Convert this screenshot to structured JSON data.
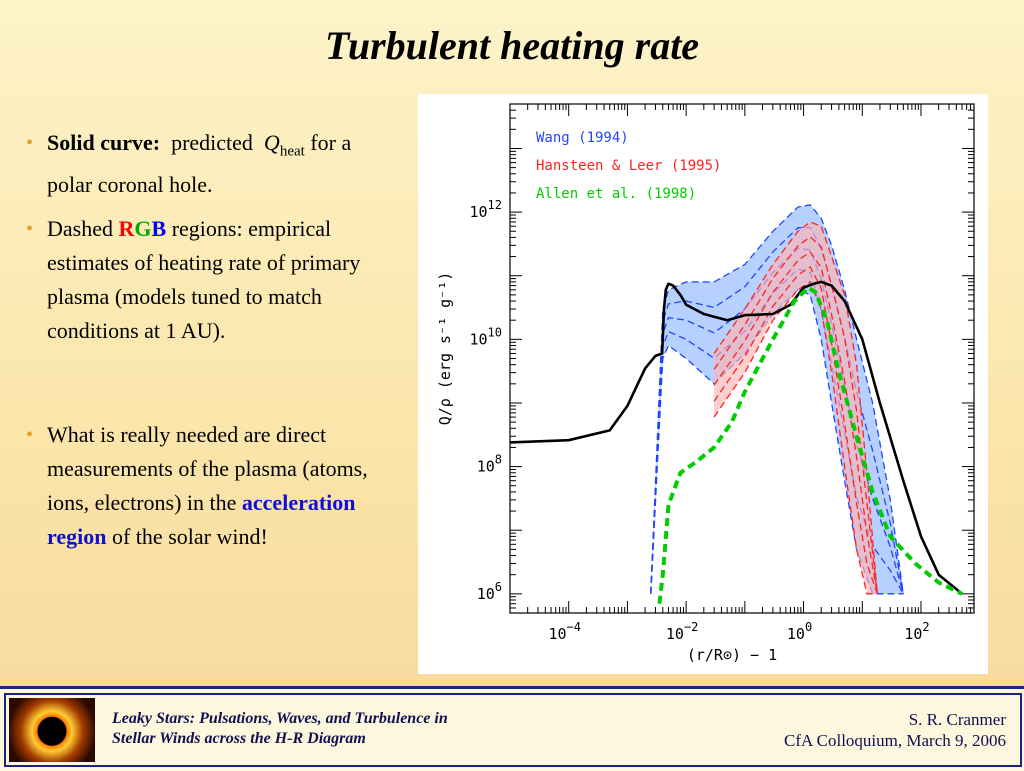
{
  "slide": {
    "title": "Turbulent heating rate",
    "bullet1": {
      "bold": "Solid curve:",
      "text": "predicted",
      "q": "Q",
      "sub": "heat",
      "rest": "for a polar coronal hole."
    },
    "bullet2": {
      "pre": "Dashed ",
      "r": "R",
      "g": "G",
      "b": "B",
      "post": " regions: empirical estimates of heating rate of primary plasma (models tuned to match conditions at 1 AU)."
    },
    "bullet3": {
      "pre": "What is really needed are direct measurements of the plasma (atoms, ions, electrons) in the ",
      "hl": "acceleration region",
      "post": " of the solar wind!"
    },
    "footer": {
      "left1": "Leaky Stars:  Pulsations, Waves, and Turbulence in",
      "left2": "Stellar Winds across the H-R Diagram",
      "right1": "S. R. Cranmer",
      "right2": "CfA Colloquium,  March 9, 2006"
    }
  },
  "chart_data": {
    "type": "line",
    "xlabel": "(r/R⊙) − 1",
    "ylabel": "Q/ρ  (erg s⁻¹ g⁻¹)",
    "xscale": "log",
    "yscale": "log",
    "xlim": [
      1e-05,
      800
    ],
    "ylim": [
      500000,
      50000000000000
    ],
    "xticks": [
      {
        "v": 0.0001,
        "base": "10",
        "exp": "−4"
      },
      {
        "v": 0.01,
        "base": "10",
        "exp": "−2"
      },
      {
        "v": 1,
        "base": "10",
        "exp": "0"
      },
      {
        "v": 100,
        "base": "10",
        "exp": "2"
      }
    ],
    "yticks": [
      {
        "v": 1000000,
        "base": "10",
        "exp": "6"
      },
      {
        "v": 100000000,
        "base": "10",
        "exp": "8"
      },
      {
        "v": 10000000000,
        "base": "10",
        "exp": "10"
      },
      {
        "v": 1000000000000,
        "base": "10",
        "exp": "12"
      }
    ],
    "legend_placement": "top-left",
    "legend": [
      {
        "label": "Wang (1994)",
        "color": "#2244ff"
      },
      {
        "label": "Hansteen & Leer (1995)",
        "color": "#ff2222"
      },
      {
        "label": "Allen et al. (1998)",
        "color": "#00cc00"
      }
    ],
    "series": [
      {
        "style": "solid",
        "color": "#000000",
        "x": [
          1e-05,
          0.0001,
          0.0005,
          0.001,
          0.002,
          0.003,
          0.0039,
          0.0042,
          0.0045,
          0.005,
          0.006,
          0.008,
          0.01,
          0.02,
          0.05,
          0.1,
          0.3,
          0.6,
          1,
          1.5,
          2,
          3,
          5,
          10,
          20,
          50,
          100,
          200,
          500
        ],
        "y": [
          240000000,
          260000000,
          370000000,
          900000000,
          3500000000,
          5500000000,
          6000000000,
          30000000000,
          60000000000,
          75000000000,
          70000000000,
          50000000000,
          35000000000,
          25000000000,
          20000000000,
          24000000000,
          25000000000,
          35000000000,
          65000000000,
          75000000000,
          80000000000,
          70000000000,
          40000000000,
          10000000000,
          1000000000,
          60000000,
          8000000,
          2000000,
          1000000
        ]
      },
      {
        "style": "dashed",
        "color": "#00cc00",
        "x": [
          0.0035,
          0.004,
          0.005,
          0.008,
          0.015,
          0.03,
          0.06,
          0.1,
          0.3,
          0.7,
          1.2,
          1.6,
          2.5,
          4,
          8,
          15,
          30,
          80,
          200,
          500
        ],
        "y": [
          700000,
          2000000,
          25000000,
          80000000,
          120000000,
          200000000,
          500000000,
          1500000000,
          10000000000,
          40000000000,
          65000000000,
          55000000000,
          20000000000,
          3000000000,
          300000000,
          40000000,
          8000000,
          3000000,
          1500000,
          1000000
        ]
      }
    ],
    "bands": [
      {
        "color": "#8fb8ff",
        "stroke": "#2244ff",
        "x": [
          0.0025,
          0.004,
          0.005,
          0.01,
          0.03,
          0.1,
          0.3,
          0.8,
          1.3,
          2,
          3,
          5,
          8,
          15,
          30,
          50
        ],
        "upper": [
          1000000,
          30000000000,
          60000000000,
          80000000000,
          80000000000,
          150000000000,
          500000000000,
          1200000000000,
          1300000000000,
          800000000000,
          300000000000,
          60000000000,
          10000000000,
          1000000000,
          30000000,
          1000000
        ],
        "lower": [
          1000000,
          5000000000,
          8000000000,
          5000000000,
          2000000000,
          6000000000,
          25000000000,
          60000000000,
          50000000000,
          10000000000,
          1000000000,
          60000000,
          5000000,
          1000000,
          1000000,
          1000000
        ]
      },
      {
        "color": "#ffb3b3",
        "stroke": "#ff2222",
        "x": [
          0.03,
          0.1,
          0.3,
          0.8,
          1.3,
          2,
          3,
          5,
          8,
          12,
          18
        ],
        "upper": [
          6000000000,
          30000000000,
          150000000000,
          500000000000,
          700000000000,
          600000000000,
          200000000000,
          50000000000,
          4000000000,
          80000000,
          1000000
        ],
        "lower": [
          600000000,
          3000000000,
          20000000000,
          60000000000,
          80000000000,
          30000000000,
          3000000000,
          100000000,
          5000000,
          1000000,
          1000000
        ]
      }
    ]
  }
}
